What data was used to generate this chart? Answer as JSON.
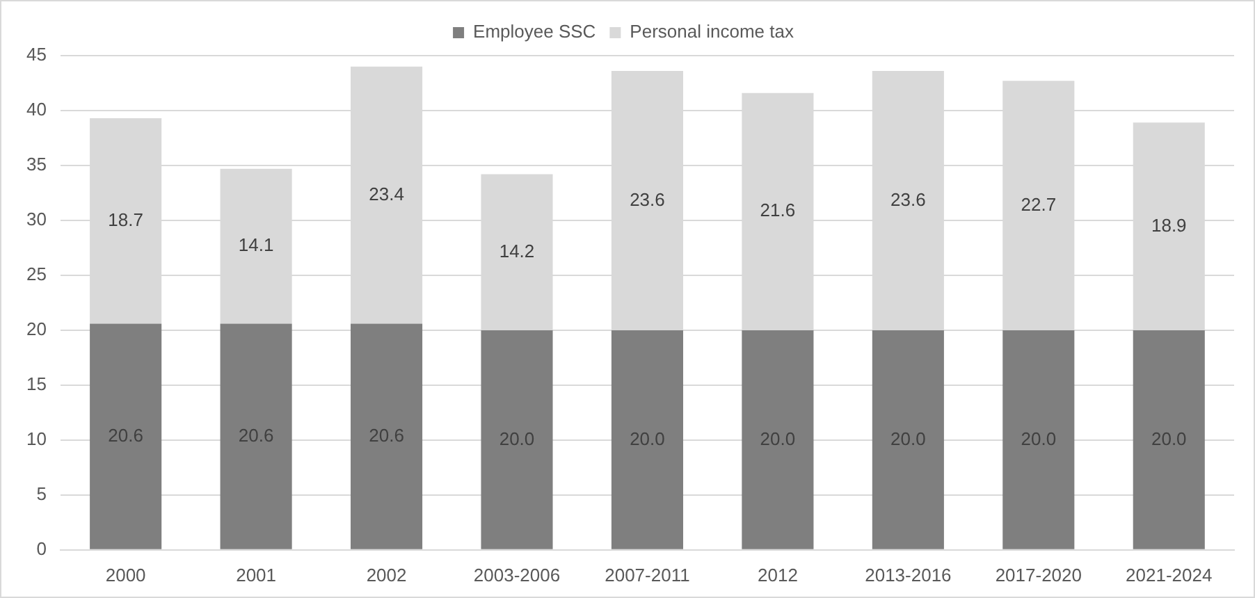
{
  "chart_data": {
    "type": "bar",
    "stacked": true,
    "categories": [
      "2000",
      "2001",
      "2002",
      "2003-2006",
      "2007-2011",
      "2012",
      "2013-2016",
      "2017-2020",
      "2021-2024"
    ],
    "series": [
      {
        "name": "Employee SSC",
        "color": "#7f7f7f",
        "values": [
          20.6,
          20.6,
          20.6,
          20.0,
          20.0,
          20.0,
          20.0,
          20.0,
          20.0
        ],
        "value_labels": [
          "20.6",
          "20.6",
          "20.6",
          "20.0",
          "20.0",
          "20.0",
          "20.0",
          "20.0",
          "20.0"
        ]
      },
      {
        "name": "Personal income tax",
        "color": "#d9d9d9",
        "values": [
          18.7,
          14.1,
          23.4,
          14.2,
          23.6,
          21.6,
          23.6,
          22.7,
          18.9
        ],
        "value_labels": [
          "18.7",
          "14.1",
          "23.4",
          "14.2",
          "23.6",
          "21.6",
          "23.6",
          "22.7",
          "18.9"
        ]
      }
    ],
    "ylim": [
      0,
      45
    ],
    "yticks": [
      0,
      5,
      10,
      15,
      20,
      25,
      30,
      35,
      40,
      45
    ],
    "grid": "y",
    "legend": "top"
  }
}
